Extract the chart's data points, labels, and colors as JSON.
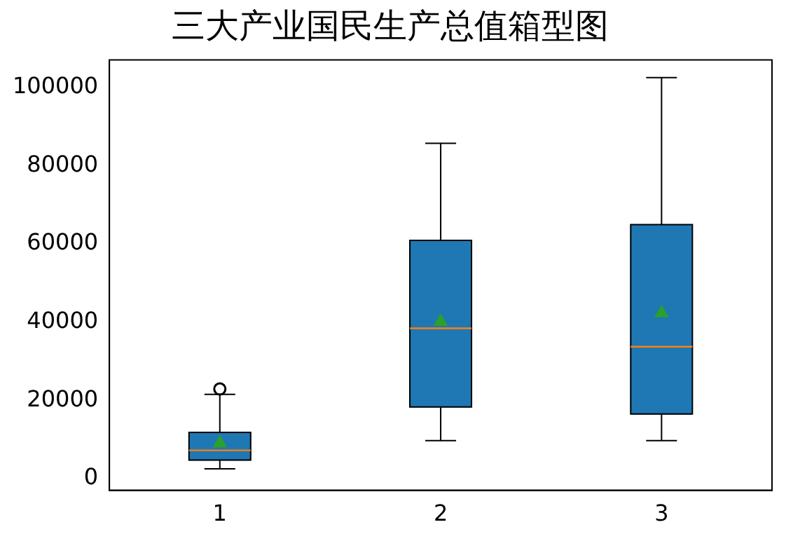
{
  "chart_data": {
    "type": "box",
    "title": "三大产业国民生产总值箱型图",
    "categories": [
      "1",
      "2",
      "3"
    ],
    "series": [
      {
        "color": "#1f77b4",
        "boxes": [
          {
            "low": 2500,
            "q1": 4700,
            "median": 7200,
            "q3": 11800,
            "high": 21500,
            "mean": 9000,
            "outliers": [
              22900
            ]
          },
          {
            "low": 9700,
            "q1": 18300,
            "median": 38400,
            "q3": 60900,
            "high": 85700,
            "mean": 40100
          },
          {
            "low": 9700,
            "q1": 16500,
            "median": 33700,
            "q3": 64900,
            "high": 102500,
            "mean": 42300
          }
        ]
      }
    ],
    "ylim": [
      -3000,
      107000
    ],
    "yticks": [
      0,
      20000,
      40000,
      60000,
      80000,
      100000
    ],
    "grid": false,
    "legend": false
  }
}
